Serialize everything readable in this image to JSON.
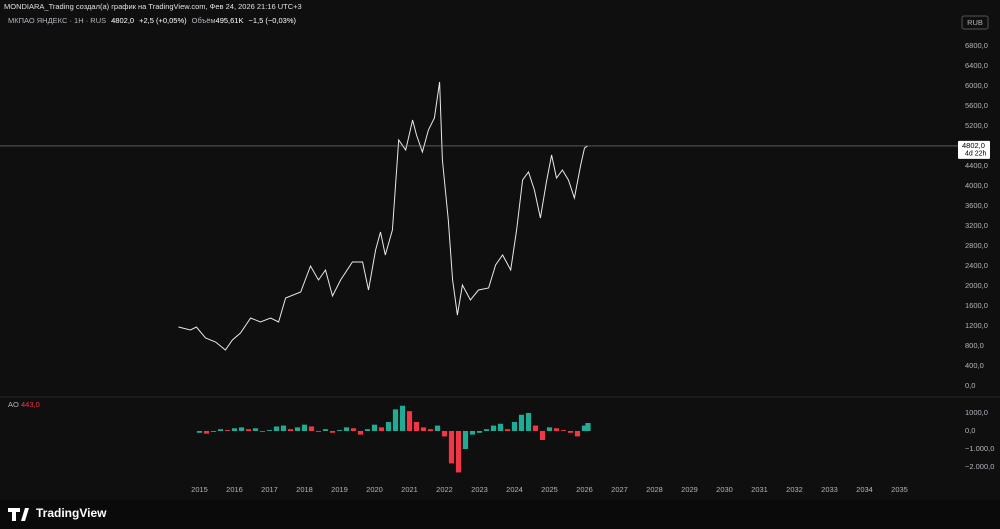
{
  "header": {
    "attribution": "MONDIARA_Trading создал(а) график на TradingView.com, Фев 24, 2026 21:16 UTC+3",
    "symbol": "МКПАО ЯНДЕКС · 1Н · RUS",
    "price": "4802,0",
    "change": "+2,5 (+0,05%)",
    "volume_label": "Объём",
    "volume": "495,61K",
    "volume_change": "−1,5 (−0,03%)",
    "currency": "RUB"
  },
  "chart_data": [
    {
      "type": "line",
      "color": "#e8e8e8",
      "x": [
        2014.4,
        2014.74,
        2014.91,
        2015.17,
        2015.46,
        2015.74,
        2015.94,
        2016.17,
        2016.46,
        2016.74,
        2017.03,
        2017.26,
        2017.46,
        2017.89,
        2018.17,
        2018.4,
        2018.6,
        2018.8,
        2019.03,
        2019.37,
        2019.66,
        2019.83,
        2020.03,
        2020.17,
        2020.31,
        2020.51,
        2020.69,
        2020.89,
        2021.09,
        2021.2,
        2021.37,
        2021.54,
        2021.71,
        2021.86,
        2021.94,
        2022.11,
        2022.23,
        2022.37,
        2022.51,
        2022.74,
        2022.97,
        2023.26,
        2023.46,
        2023.66,
        2023.89,
        2024.06,
        2024.23,
        2024.4,
        2024.57,
        2024.74,
        2024.91,
        2025.06,
        2025.2,
        2025.37,
        2025.54,
        2025.71,
        2025.89,
        2026.0,
        2026.09
      ],
      "values": [
        1180,
        1120,
        1180,
        960,
        880,
        720,
        920,
        1060,
        1360,
        1280,
        1360,
        1280,
        1760,
        1880,
        2400,
        2120,
        2320,
        1800,
        2120,
        2480,
        2480,
        1920,
        2720,
        3080,
        2620,
        3120,
        4920,
        4720,
        5320,
        5020,
        4680,
        5120,
        5360,
        6080,
        4520,
        3320,
        2120,
        1420,
        2020,
        1720,
        1920,
        1960,
        2420,
        2620,
        2320,
        3120,
        4120,
        4280,
        3920,
        3360,
        4080,
        4620,
        4160,
        4320,
        4120,
        3760,
        4420,
        4760,
        4802
      ],
      "xlim": [
        2009.3,
        2036.3
      ],
      "xticks": [
        2015,
        2016,
        2017,
        2018,
        2019,
        2020,
        2021,
        2022,
        2023,
        2024,
        2025,
        2026,
        2027,
        2028,
        2029,
        2030,
        2031,
        2032,
        2033,
        2034,
        2035
      ],
      "ylim": [
        -220,
        7120
      ],
      "yticks": [
        {
          "value": 0,
          "label": "0,0"
        },
        {
          "value": 400,
          "label": "400,0"
        },
        {
          "value": 800,
          "label": "800,0"
        },
        {
          "value": 1200,
          "label": "1200,0"
        },
        {
          "value": 1600,
          "label": "1600,0"
        },
        {
          "value": 2000,
          "label": "2000,0"
        },
        {
          "value": 2400,
          "label": "2400,0"
        },
        {
          "value": 2800,
          "label": "2800,0"
        },
        {
          "value": 3200,
          "label": "3200,0"
        },
        {
          "value": 3600,
          "label": "3600,0"
        },
        {
          "value": 4000,
          "label": "4000,0"
        },
        {
          "value": 4400,
          "label": "4400,0"
        },
        {
          "value": 4800,
          "label": "4800,0"
        },
        {
          "value": 5200,
          "label": "5200,0"
        },
        {
          "value": 5600,
          "label": "5600,0"
        },
        {
          "value": 6000,
          "label": "6000,0"
        },
        {
          "value": 6400,
          "label": "6400,0"
        },
        {
          "value": 6800,
          "label": "6800,0"
        }
      ],
      "last_label": "4802,0",
      "countdown": "4d 22h"
    },
    {
      "type": "histogram",
      "title": "AO",
      "value_label": "443,0",
      "value_color": "#f23645",
      "up_color": "#22ab94",
      "down_color": "#f23645",
      "x": [
        2015.0,
        2015.2,
        2015.4,
        2015.6,
        2015.8,
        2016.0,
        2016.2,
        2016.4,
        2016.6,
        2016.8,
        2017.0,
        2017.2,
        2017.4,
        2017.6,
        2017.8,
        2018.0,
        2018.2,
        2018.4,
        2018.6,
        2018.8,
        2019.0,
        2019.2,
        2019.4,
        2019.6,
        2019.8,
        2020.0,
        2020.2,
        2020.4,
        2020.6,
        2020.8,
        2021.0,
        2021.2,
        2021.4,
        2021.6,
        2021.8,
        2022.0,
        2022.2,
        2022.4,
        2022.6,
        2022.8,
        2023.0,
        2023.2,
        2023.4,
        2023.6,
        2023.8,
        2024.0,
        2024.2,
        2024.4,
        2024.6,
        2024.8,
        2025.0,
        2025.2,
        2025.4,
        2025.6,
        2025.8,
        2026.0,
        2026.1
      ],
      "values": [
        -100,
        -150,
        -50,
        100,
        50,
        150,
        200,
        100,
        150,
        -50,
        50,
        250,
        300,
        100,
        200,
        350,
        250,
        -50,
        100,
        -100,
        50,
        200,
        150,
        -200,
        100,
        350,
        200,
        500,
        1200,
        1400,
        1100,
        500,
        200,
        100,
        300,
        -300,
        -1800,
        -2300,
        -1000,
        -200,
        -100,
        100,
        300,
        400,
        100,
        500,
        900,
        1000,
        300,
        -500,
        200,
        150,
        50,
        -100,
        -300,
        300,
        443
      ],
      "ylim": [
        -2720,
        1830
      ],
      "yticks": [
        {
          "value": 1000,
          "label": "1000,0"
        },
        {
          "value": 0,
          "label": "0,0"
        },
        {
          "value": -1000,
          "label": "−1.000,0"
        },
        {
          "value": -2000,
          "label": "−2.000,0"
        }
      ]
    }
  ],
  "brand": "TradingView"
}
